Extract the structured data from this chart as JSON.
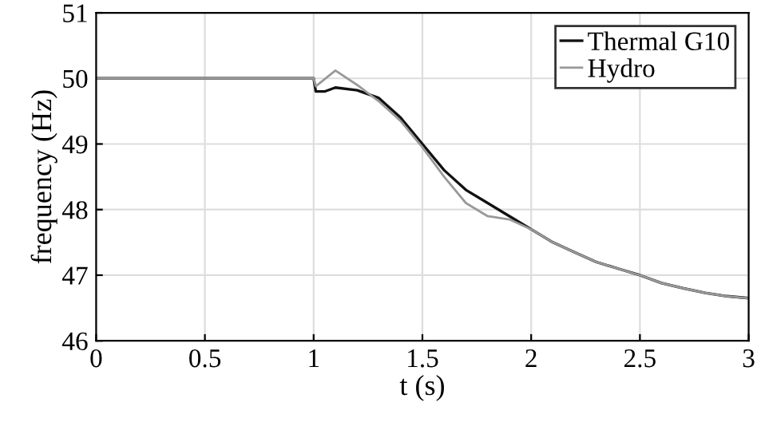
{
  "chart_data": {
    "type": "line",
    "xlabel": "t (s)",
    "ylabel": "frequency (Hz)",
    "xlim": [
      0,
      3
    ],
    "ylim": [
      46,
      51
    ],
    "xticks": [
      0,
      0.5,
      1,
      1.5,
      2,
      2.5,
      3
    ],
    "yticks": [
      46,
      47,
      48,
      49,
      50,
      51
    ],
    "grid": true,
    "legend": "top right",
    "series": [
      {
        "name": "Thermal G10",
        "color": "#111111",
        "x": [
          0,
          1.0,
          1.01,
          1.05,
          1.1,
          1.2,
          1.3,
          1.4,
          1.5,
          1.6,
          1.7,
          1.8,
          1.9,
          2.0,
          2.1,
          2.2,
          2.3,
          2.4,
          2.5,
          2.6,
          2.7,
          2.8,
          2.9,
          3.0
        ],
        "values": [
          50,
          50,
          49.8,
          49.8,
          49.86,
          49.82,
          49.7,
          49.4,
          49.0,
          48.6,
          48.3,
          48.1,
          47.9,
          47.7,
          47.5,
          47.35,
          47.2,
          47.1,
          47.0,
          46.88,
          46.8,
          46.73,
          46.68,
          46.65
        ]
      },
      {
        "name": "Hydro",
        "color": "#999999",
        "x": [
          0,
          1.0,
          1.01,
          1.1,
          1.2,
          1.3,
          1.4,
          1.5,
          1.6,
          1.7,
          1.8,
          1.9,
          2.0,
          2.1,
          2.2,
          2.3,
          2.4,
          2.5,
          2.6,
          2.7,
          2.8,
          2.9,
          3.0
        ],
        "values": [
          50,
          50,
          49.88,
          50.12,
          49.9,
          49.65,
          49.35,
          48.95,
          48.5,
          48.1,
          47.9,
          47.85,
          47.7,
          47.5,
          47.35,
          47.2,
          47.1,
          47.0,
          46.88,
          46.8,
          46.73,
          46.68,
          46.65
        ]
      }
    ]
  }
}
